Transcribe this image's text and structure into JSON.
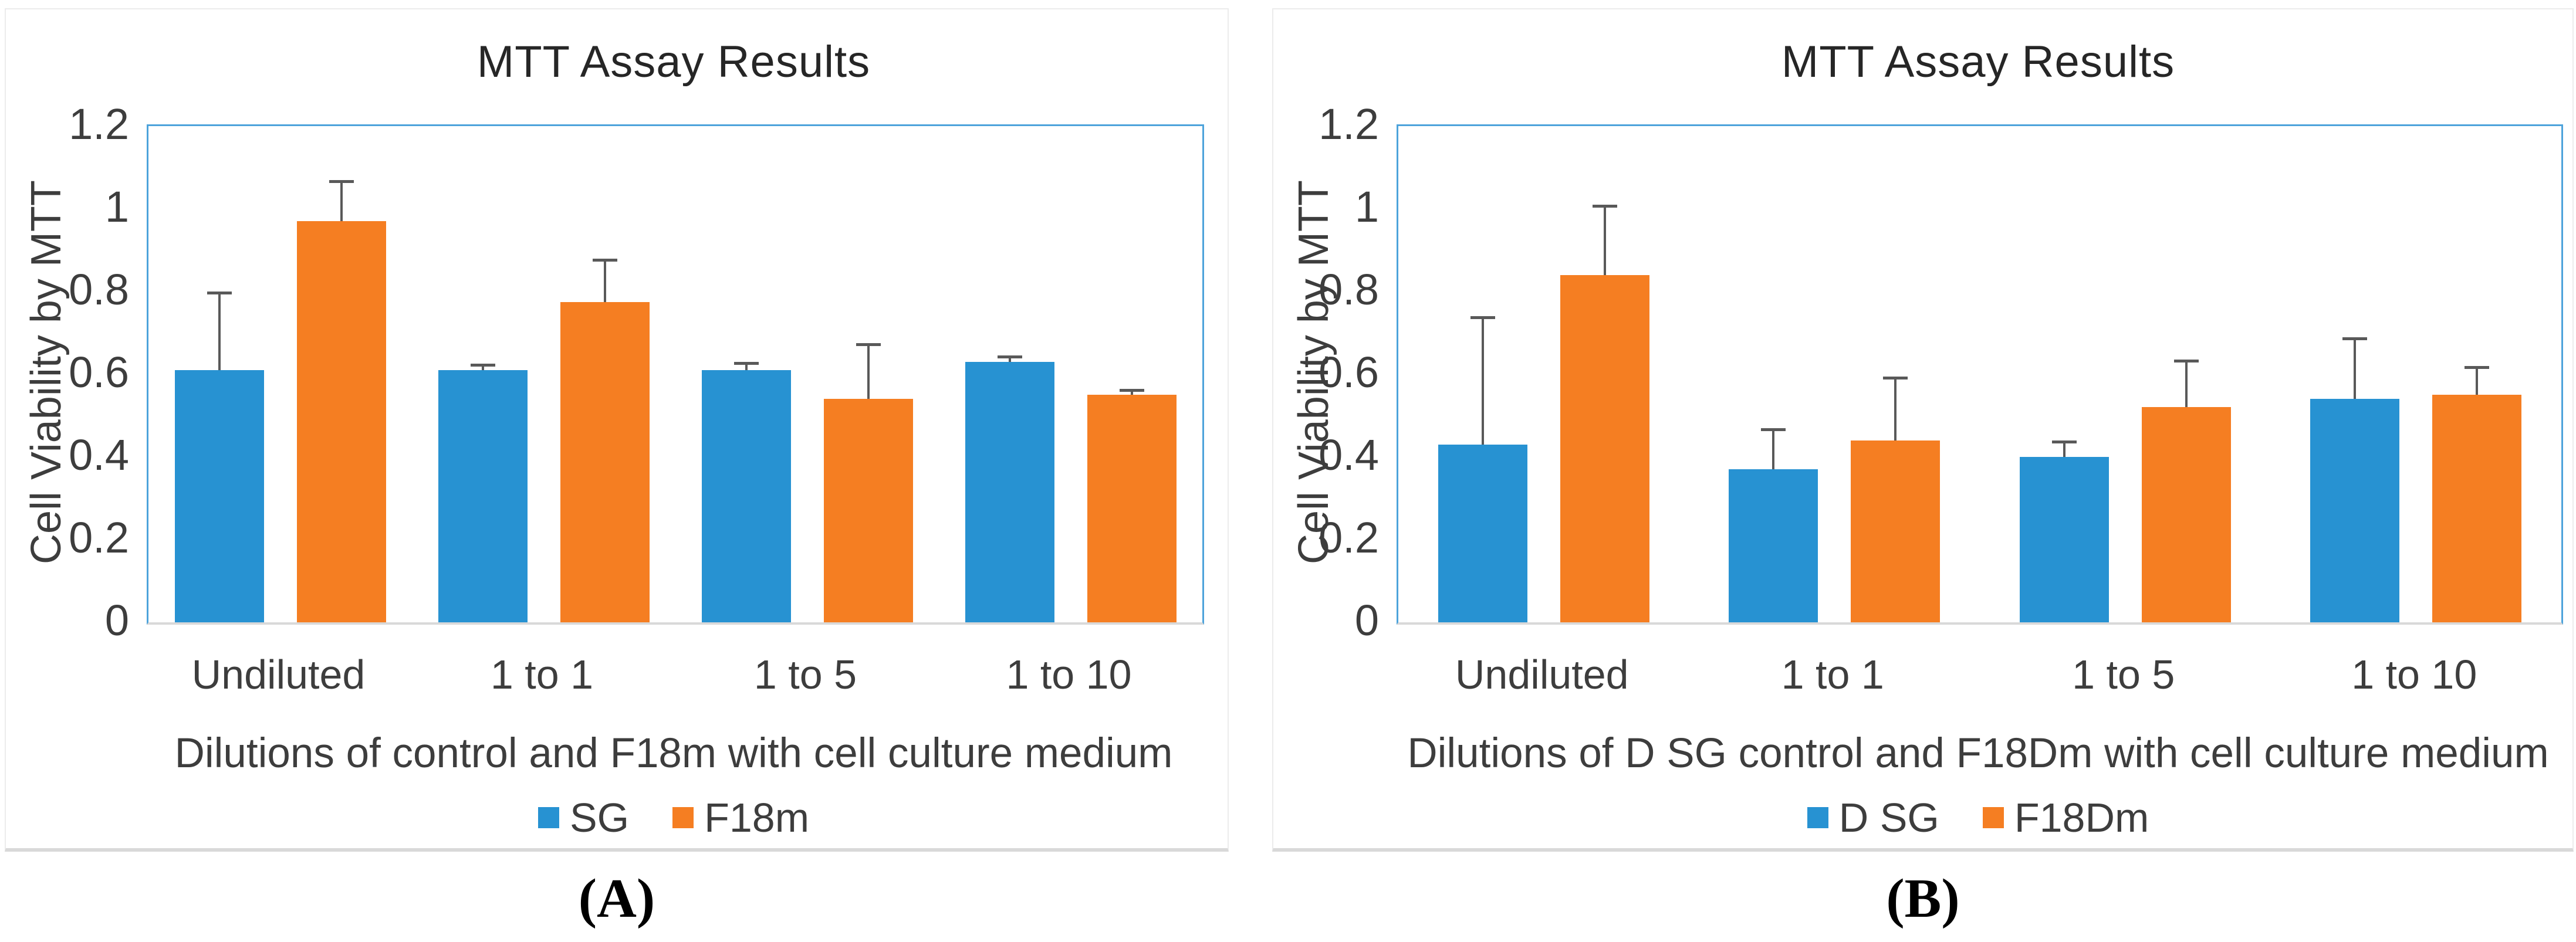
{
  "figure_title": "MTT Assay Results (two-panel figure)",
  "captions": [
    "(A)",
    "(B)"
  ],
  "colors": {
    "series_blue": "#2792D2",
    "series_orange": "#F57E22",
    "plot_border_blue": "#4DA3DB",
    "axis_baseline_gray": "#D9D9D9",
    "error_bar_gray": "#595959",
    "text_gray": "#3D3D3D"
  },
  "chart_data": [
    {
      "type": "bar",
      "title": "MTT Assay Results",
      "categories": [
        "Undiluted",
        "1 to 1",
        "1 to 5",
        "1 to 10"
      ],
      "series": [
        {
          "name": "SG",
          "color": "#2792D2",
          "values": [
            0.61,
            0.61,
            0.61,
            0.63
          ],
          "error_up": [
            0.19,
            0.015,
            0.02,
            0.015
          ]
        },
        {
          "name": "F18m",
          "color": "#F57E22",
          "values": [
            0.97,
            0.775,
            0.54,
            0.55
          ],
          "error_up": [
            0.1,
            0.105,
            0.135,
            0.015
          ]
        }
      ],
      "xlabel": "Dilutions of control and F18m with cell culture medium",
      "ylabel": "Cell Viability by MTT",
      "ylim": [
        0,
        1.2
      ],
      "yticks": [
        0,
        0.2,
        0.4,
        0.6,
        0.8,
        1,
        1.2
      ],
      "ytick_labels": [
        "0",
        "0.2",
        "0.4",
        "0.6",
        "0.8",
        "1",
        "1.2"
      ],
      "legend_position": "bottom",
      "grid": false
    },
    {
      "type": "bar",
      "title": "MTT Assay Results",
      "categories": [
        "Undiluted",
        "1 to 1",
        "1 to 5",
        "1 to 10"
      ],
      "series": [
        {
          "name": "D SG",
          "color": "#2792D2",
          "values": [
            0.43,
            0.37,
            0.4,
            0.54
          ],
          "error_up": [
            0.31,
            0.1,
            0.04,
            0.15
          ]
        },
        {
          "name": "F18Dm",
          "color": "#F57E22",
          "values": [
            0.84,
            0.44,
            0.52,
            0.55
          ],
          "error_up": [
            0.17,
            0.155,
            0.115,
            0.07
          ]
        }
      ],
      "xlabel": "Dilutions of D SG control and F18Dm with cell culture medium",
      "ylabel": "Cell Viability by MTT",
      "ylim": [
        0,
        1.2
      ],
      "yticks": [
        0,
        0.2,
        0.4,
        0.6,
        0.8,
        1,
        1.2
      ],
      "ytick_labels": [
        "0",
        "0.2",
        "0.4",
        "0.6",
        "0.8",
        "1",
        "1.2"
      ],
      "legend_position": "bottom",
      "grid": false
    }
  ]
}
